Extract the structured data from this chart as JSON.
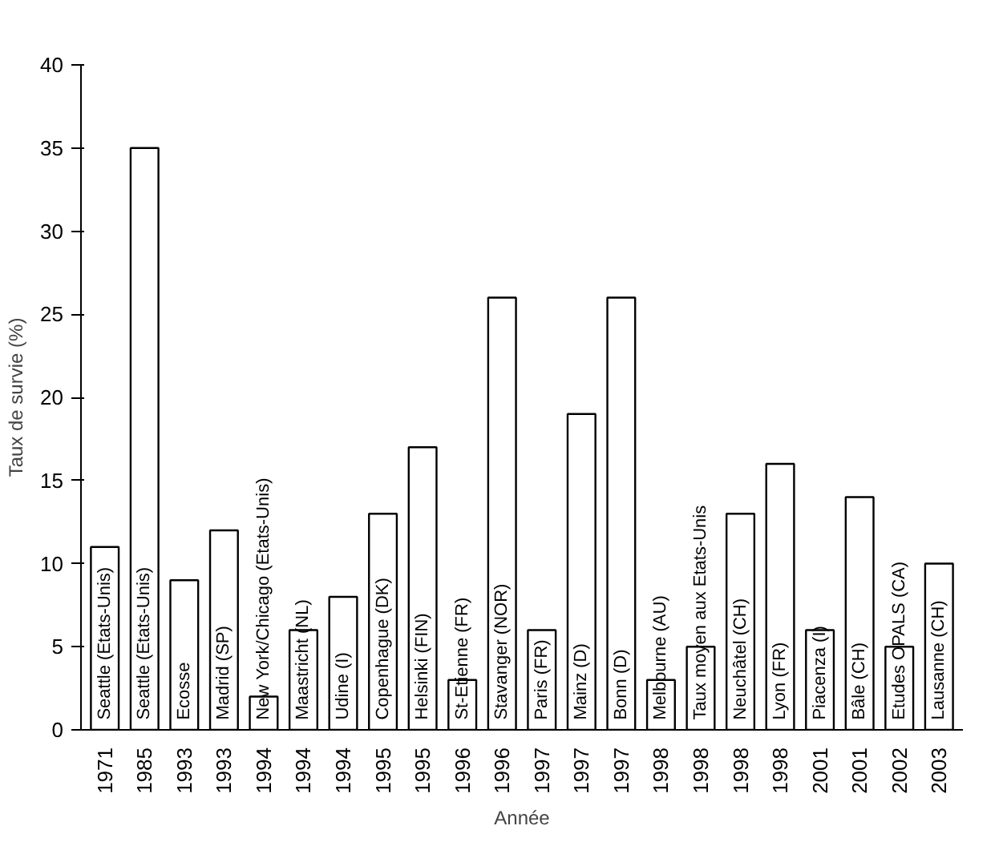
{
  "chart_data": {
    "type": "bar",
    "xlabel": "Année",
    "ylabel": "Taux de survie (%)",
    "categories": [
      "1971",
      "1985",
      "1993",
      "1993",
      "1994",
      "1994",
      "1994",
      "1995",
      "1995",
      "1996",
      "1996",
      "1997",
      "1997",
      "1997",
      "1998",
      "1998",
      "1998",
      "1998",
      "2001",
      "2001",
      "2002",
      "2003"
    ],
    "values": [
      11,
      35,
      9,
      12,
      2,
      6,
      8,
      13,
      17,
      3,
      26,
      6,
      19,
      26,
      3,
      5,
      13,
      16,
      6,
      14,
      5,
      10
    ],
    "color": "#ffffff",
    "ylim": [
      0,
      40
    ],
    "yticks": [
      0,
      5,
      10,
      15,
      20,
      25,
      30,
      35,
      40
    ],
    "grid": false,
    "annotations": [
      "Seattle (Etats-Unis)",
      "Seattle (Etats-Unis)",
      "Ecosse",
      "Madrid (SP)",
      "New York/Chicago (Etats-Unis)",
      "Maastricht (NL)",
      "Udine (I)",
      "Copenhague (DK)",
      "Helsinki (FIN)",
      "St-Etienne (FR)",
      "Stavanger (NOR)",
      "Paris (FR)",
      "Mainz (D)",
      "Bonn (D)",
      "Melbourne (AU)",
      "Taux moyen aux Etats-Unis",
      "Neuchâtel (CH)",
      "Lyon (FR)",
      "Piacenza (I)",
      "Bâle (CH)",
      "Etudes OPALS (CA)",
      "Lausanne (CH)"
    ]
  }
}
